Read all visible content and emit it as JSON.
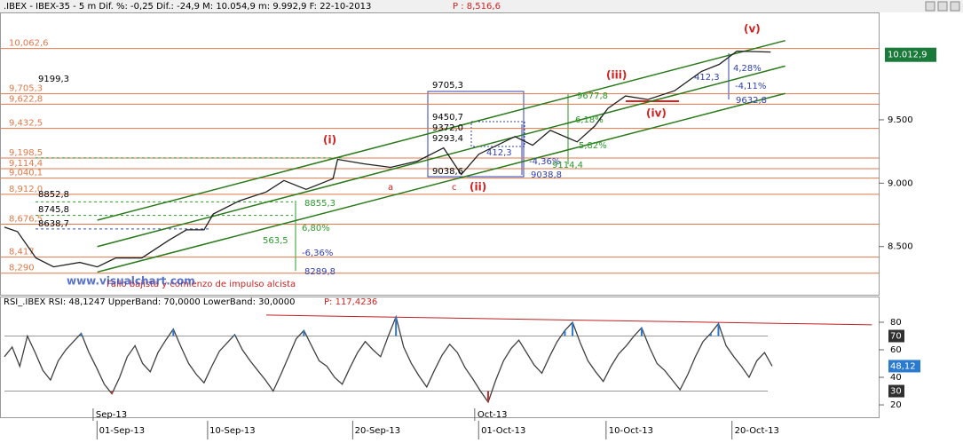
{
  "header": {
    "text": ".IBEX - IBEX-35 -  5 m Dif. %: -0,25 Dif.: -24,9 M: 10.054,9 m: 9.992,9 F: 22-10-2013",
    "price": "P : 8,516,6"
  },
  "chart_data": [
    {
      "type": "line",
      "color": "#202020",
      "x": [
        0,
        1.7,
        4.1,
        6.4,
        9.8,
        12.1,
        14.5,
        17.9,
        21.4,
        23.7,
        26,
        27.2,
        30.6,
        34.1,
        36.4,
        39.3,
        42.8,
        43.4,
        46.8,
        50.3,
        53.8,
        57.2,
        59.5,
        61.8,
        66.5,
        68.8,
        71.1,
        74.6,
        76.9,
        78.6,
        80.9,
        83.8,
        87.3,
        90.8,
        93.1,
        95.4,
        99.8
      ],
      "values": [
        8653,
        8618,
        8410,
        8340,
        8375,
        8340,
        8410,
        8410,
        8549,
        8632,
        8632,
        8757,
        8861,
        8931,
        9021,
        8951,
        9035,
        9188,
        9153,
        9125,
        9174,
        9278,
        9069,
        9229,
        9368,
        9299,
        9417,
        9326,
        9451,
        9590,
        9688,
        9660,
        9729,
        9882,
        9937,
        10042,
        10035
      ],
      "xlim": [
        0,
        100
      ],
      "ylim": [
        8120,
        10340
      ],
      "yticks": [
        {
          "value": 9500,
          "label": "9.500"
        },
        {
          "value": 9000,
          "label": "9.000"
        },
        {
          "value": 8500,
          "label": "8.500"
        }
      ],
      "last": {
        "value": 10012.9,
        "label": "10.012,9"
      },
      "levels": [
        {
          "value": 10062.6,
          "label": "10,062,6"
        },
        {
          "value": 9705.3,
          "label": "9,705,3"
        },
        {
          "value": 9622.8,
          "label": "9,622,8"
        },
        {
          "value": 9432.5,
          "label": "9,432,5"
        },
        {
          "value": 9198.5,
          "label": "9,198,5"
        },
        {
          "value": 9114.4,
          "label": "9,114,4"
        },
        {
          "value": 9040.1,
          "label": "9,040,1"
        },
        {
          "value": 8912.0,
          "label": "8,912,0"
        },
        {
          "value": 8676.5,
          "label": "8,676,5"
        },
        {
          "value": 8417,
          "label": "8,417"
        },
        {
          "value": 8290,
          "label": "8,290"
        }
      ],
      "level_color": "#e07848",
      "dashed_levels": [
        {
          "value": 9199.3,
          "color": "#2a9a2a"
        },
        {
          "value": 8852.8,
          "color": "#2a9a2a"
        },
        {
          "value": 8745.8,
          "color": "#2a9a2a"
        },
        {
          "value": 8638.7,
          "color": "#3050c0"
        }
      ],
      "trendlines": [
        {
          "x": [
            12.1,
            101.7
          ],
          "y": [
            8708,
            10125
          ]
        },
        {
          "x": [
            12.1,
            101.7
          ],
          "y": [
            8500,
            9924
          ]
        },
        {
          "x": [
            12.1,
            101.7
          ],
          "y": [
            8299,
            9708
          ]
        }
      ],
      "trend_color": "#2a7a1a",
      "annotations": [
        "(i)",
        "(ii)",
        "(iii)",
        "(iv)",
        "(v)",
        "a",
        "c",
        "9199,3",
        "8852,8",
        "8745,8",
        "8638,7",
        "563,5",
        "6,80%",
        "-6,36%",
        "8855,3",
        "8289,8",
        "9705,3",
        "9450,7",
        "9372,0",
        "9293,4",
        "412,3",
        "9038,6",
        "-4,36%",
        "9114,4",
        "9038,8",
        "9677,8",
        "6,18%",
        "5,82%",
        "412,3",
        "4,28%",
        "-4,11%",
        "9632,8",
        "Fallo bajista y comienzo de impulso alcista",
        "www.visualchart.com"
      ]
    },
    {
      "type": "line",
      "title": "RSI_.IBEX RSI: 48,1247 UpperBand: 70,0000 LowerBand: 30,0000",
      "subtitle": "P: 117,4236",
      "color": "#404040",
      "upper_color": "#2a7ad0",
      "lower_color": "#c03030",
      "values": [
        55,
        62,
        48,
        70,
        58,
        45,
        38,
        52,
        60,
        66,
        72,
        58,
        47,
        35,
        28,
        40,
        55,
        63,
        50,
        44,
        58,
        67,
        75,
        62,
        50,
        42,
        36,
        48,
        59,
        65,
        71,
        60,
        52,
        45,
        38,
        30,
        42,
        55,
        68,
        74,
        63,
        52,
        48,
        40,
        35,
        47,
        58,
        66,
        60,
        55,
        70,
        84,
        62,
        50,
        41,
        33,
        45,
        56,
        64,
        58,
        47,
        39,
        30,
        22,
        38,
        52,
        61,
        67,
        58,
        49,
        43,
        55,
        66,
        74,
        80,
        65,
        52,
        44,
        37,
        48,
        57,
        63,
        70,
        76,
        62,
        50,
        45,
        38,
        31,
        42,
        55,
        66,
        72,
        79,
        63,
        55,
        48,
        40,
        52,
        58,
        48.12
      ],
      "xlim": [
        0,
        100
      ],
      "ylim": [
        11,
        91.6
      ],
      "yticks": [
        20,
        40,
        60,
        80
      ],
      "bands": [
        {
          "value": 70,
          "label": "70"
        },
        {
          "value": 30,
          "label": "30"
        }
      ],
      "last": {
        "value": 48.12,
        "label": "48,12"
      },
      "trendline": {
        "x": [
          34.1,
          113
        ],
        "y": [
          85.2,
          78.1
        ],
        "color": "#c02020"
      },
      "xticks": [
        {
          "value": 15.3,
          "label": "01-Sep-13"
        },
        {
          "value": 29.7,
          "label": "10-Sep-13"
        },
        {
          "value": 48.6,
          "label": "20-Sep-13"
        },
        {
          "value": 65.0,
          "label": "01-Oct-13"
        },
        {
          "value": 81.6,
          "label": "10-Oct-13"
        },
        {
          "value": 98.0,
          "label": "20-Oct-13"
        }
      ],
      "month_ticks": [
        {
          "value": 11.9,
          "label": "Sep-13"
        },
        {
          "value": 61.6,
          "label": "Oct-13"
        }
      ]
    }
  ]
}
